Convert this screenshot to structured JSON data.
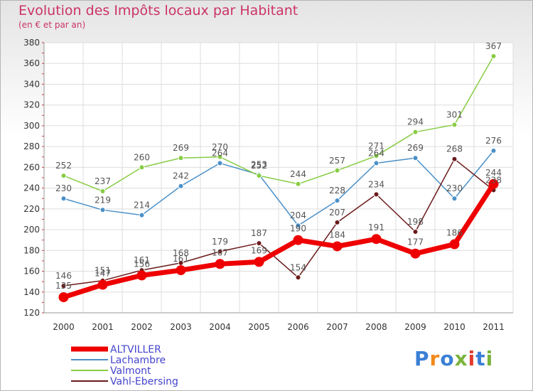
{
  "title": "Evolution des Impôts locaux par Habitant",
  "subtitle": "(en € et par an)",
  "logo_text": "Proxiti",
  "chart_data": {
    "type": "line",
    "x": [
      "2000",
      "2001",
      "2002",
      "2003",
      "2004",
      "2005",
      "2006",
      "2007",
      "2008",
      "2009",
      "2010",
      "2011"
    ],
    "ylim": [
      120,
      380
    ],
    "yticks": [
      120,
      140,
      160,
      180,
      200,
      220,
      240,
      260,
      280,
      300,
      320,
      340,
      360,
      380
    ],
    "grid": true,
    "legend_position": "bottom-left",
    "series": [
      {
        "name": "ALTVILLER",
        "color": "#ee0000",
        "values": [
          135,
          147,
          156,
          161,
          167,
          169,
          190,
          184,
          191,
          177,
          186,
          244
        ]
      },
      {
        "name": "Lachambre",
        "color": "#4a90c8",
        "values": [
          230,
          219,
          214,
          242,
          264,
          253,
          204,
          228,
          264,
          269,
          230,
          276
        ]
      },
      {
        "name": "Valmont",
        "color": "#88cc44",
        "values": [
          252,
          237,
          260,
          269,
          270,
          252,
          244,
          257,
          271,
          294,
          301,
          367
        ]
      },
      {
        "name": "Vahl-Ebersing",
        "color": "#6b1a1a",
        "values": [
          146,
          151,
          161,
          168,
          179,
          187,
          154,
          207,
          234,
          198,
          268,
          238
        ]
      }
    ]
  }
}
